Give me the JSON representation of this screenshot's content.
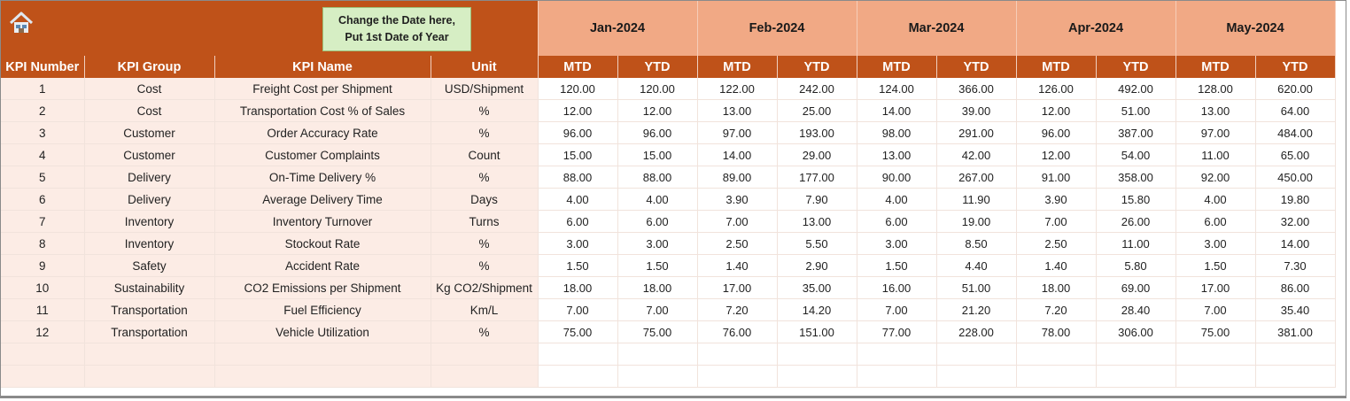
{
  "callout": {
    "line1": "Change the Date here,",
    "line2": "Put 1st Date of Year"
  },
  "months": [
    "Jan-2024",
    "Feb-2024",
    "Mar-2024",
    "Apr-2024",
    "May-2024"
  ],
  "columns": {
    "kpi_number": "KPI Number",
    "kpi_group": "KPI Group",
    "kpi_name": "KPI Name",
    "unit": "Unit",
    "mtd": "MTD",
    "ytd": "YTD"
  },
  "colors": {
    "header_dark": "#BF5219",
    "header_light": "#F1A985",
    "left_fill": "#FCECE5",
    "callout": "#D6EEC4"
  },
  "rows": [
    {
      "num": "1",
      "group": "Cost",
      "name": "Freight Cost per Shipment",
      "unit": "USD/Shipment",
      "values": [
        "120.00",
        "120.00",
        "122.00",
        "242.00",
        "124.00",
        "366.00",
        "126.00",
        "492.00",
        "128.00",
        "620.00"
      ]
    },
    {
      "num": "2",
      "group": "Cost",
      "name": "Transportation Cost % of Sales",
      "unit": "%",
      "values": [
        "12.00",
        "12.00",
        "13.00",
        "25.00",
        "14.00",
        "39.00",
        "12.00",
        "51.00",
        "13.00",
        "64.00"
      ]
    },
    {
      "num": "3",
      "group": "Customer",
      "name": "Order Accuracy Rate",
      "unit": "%",
      "values": [
        "96.00",
        "96.00",
        "97.00",
        "193.00",
        "98.00",
        "291.00",
        "96.00",
        "387.00",
        "97.00",
        "484.00"
      ]
    },
    {
      "num": "4",
      "group": "Customer",
      "name": "Customer Complaints",
      "unit": "Count",
      "values": [
        "15.00",
        "15.00",
        "14.00",
        "29.00",
        "13.00",
        "42.00",
        "12.00",
        "54.00",
        "11.00",
        "65.00"
      ]
    },
    {
      "num": "5",
      "group": "Delivery",
      "name": "On-Time Delivery %",
      "unit": "%",
      "values": [
        "88.00",
        "88.00",
        "89.00",
        "177.00",
        "90.00",
        "267.00",
        "91.00",
        "358.00",
        "92.00",
        "450.00"
      ]
    },
    {
      "num": "6",
      "group": "Delivery",
      "name": "Average Delivery Time",
      "unit": "Days",
      "values": [
        "4.00",
        "4.00",
        "3.90",
        "7.90",
        "4.00",
        "11.90",
        "3.90",
        "15.80",
        "4.00",
        "19.80"
      ]
    },
    {
      "num": "7",
      "group": "Inventory",
      "name": "Inventory Turnover",
      "unit": "Turns",
      "values": [
        "6.00",
        "6.00",
        "7.00",
        "13.00",
        "6.00",
        "19.00",
        "7.00",
        "26.00",
        "6.00",
        "32.00"
      ]
    },
    {
      "num": "8",
      "group": "Inventory",
      "name": "Stockout Rate",
      "unit": "%",
      "values": [
        "3.00",
        "3.00",
        "2.50",
        "5.50",
        "3.00",
        "8.50",
        "2.50",
        "11.00",
        "3.00",
        "14.00"
      ]
    },
    {
      "num": "9",
      "group": "Safety",
      "name": "Accident Rate",
      "unit": "%",
      "values": [
        "1.50",
        "1.50",
        "1.40",
        "2.90",
        "1.50",
        "4.40",
        "1.40",
        "5.80",
        "1.50",
        "7.30"
      ]
    },
    {
      "num": "10",
      "group": "Sustainability",
      "name": "CO2 Emissions per Shipment",
      "unit": "Kg CO2/Shipment",
      "values": [
        "18.00",
        "18.00",
        "17.00",
        "35.00",
        "16.00",
        "51.00",
        "18.00",
        "69.00",
        "17.00",
        "86.00"
      ]
    },
    {
      "num": "11",
      "group": "Transportation",
      "name": "Fuel Efficiency",
      "unit": "Km/L",
      "values": [
        "7.00",
        "7.00",
        "7.20",
        "14.20",
        "7.00",
        "21.20",
        "7.20",
        "28.40",
        "7.00",
        "35.40"
      ]
    },
    {
      "num": "12",
      "group": "Transportation",
      "name": "Vehicle Utilization",
      "unit": "%",
      "values": [
        "75.00",
        "75.00",
        "76.00",
        "151.00",
        "77.00",
        "228.00",
        "78.00",
        "306.00",
        "75.00",
        "381.00"
      ]
    }
  ]
}
